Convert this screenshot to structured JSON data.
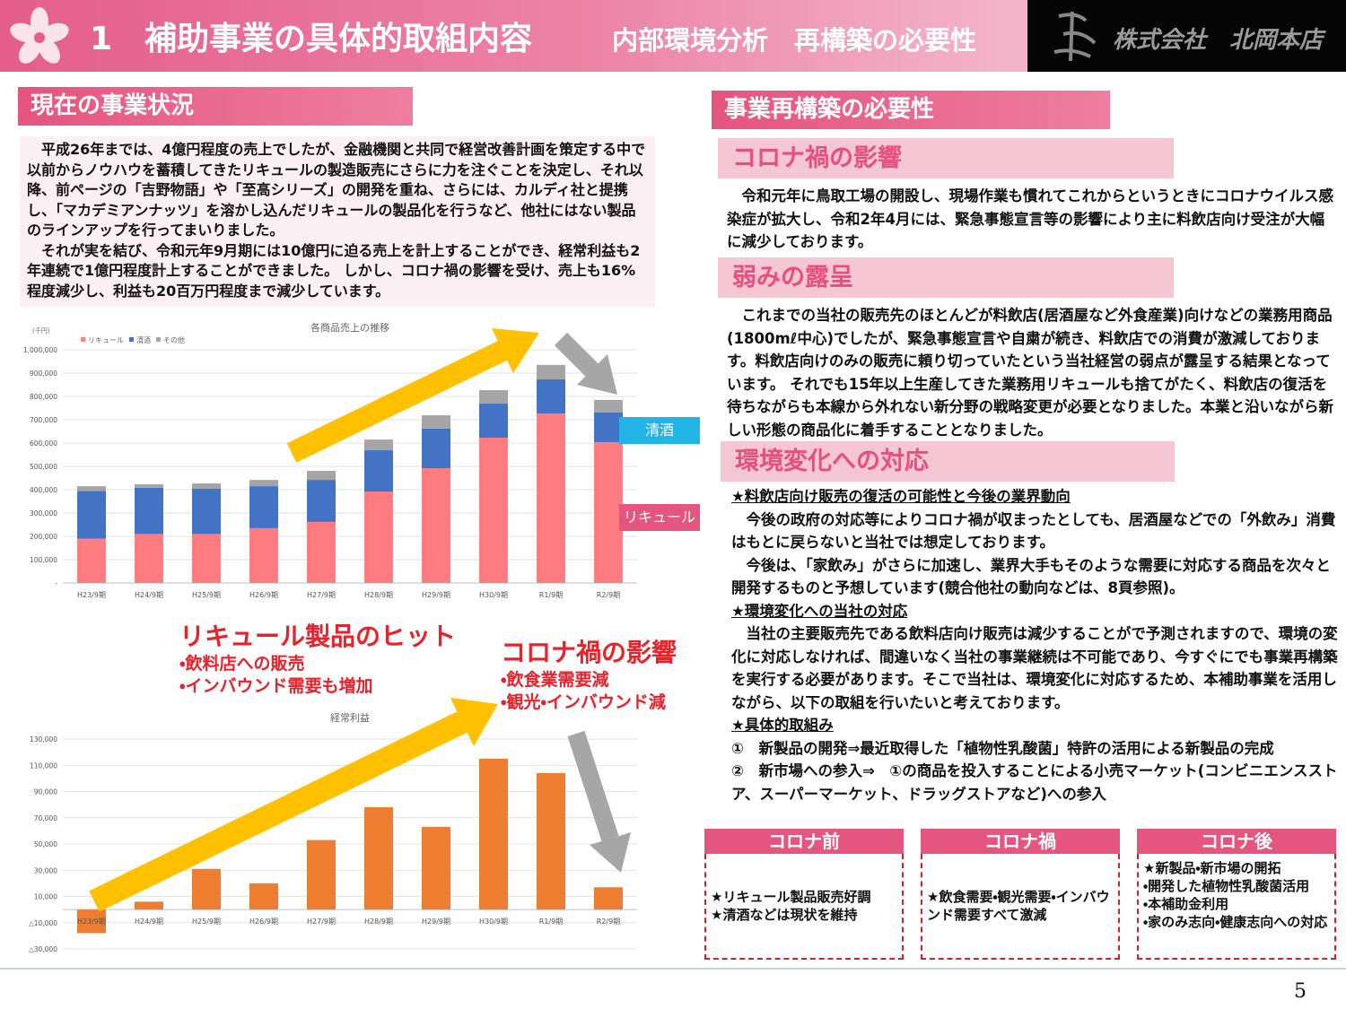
{
  "header": {
    "title": "1　補助事業の具体的取組内容",
    "subtitle": "内部環境分析　再構築の必要性",
    "company": "株式会社　北岡本店"
  },
  "current": {
    "heading": "現在の事業状況",
    "paragraphs": [
      "平成26年までは、4億円程度の売上でしたが、金融機関と共同で経営改善計画を策定する中で以前からノウハウを蓄積してきたリキュールの製造販売にさらに力を注ぐことを決定し、それ以降、前ページの「吉野物語」や「至高シリーズ」の開発を重ね、さらには、カルディ社と提携し、「マカデミアンナッツ」を溶かし込んだリキュールの製品化を行うなど、他社にはない製品のラインアップを行ってまいりました。",
      "それが実を結び、令和元年9月期には10億円に迫る売上を計上することができ、経常利益も2年連続で1億円程度計上することができました。 しかし、コロナ禍の影響を受け、売上も16%程度減少し、利益も20百万円程度まで減少しています。"
    ]
  },
  "chart_data": [
    {
      "type": "bar",
      "stacked": true,
      "title": "各商品売上の推移",
      "y_label": "(千円)",
      "legend": "top-left",
      "grid": true,
      "categories": [
        "H23/9期",
        "H24/9期",
        "H25/9期",
        "H26/9期",
        "H27/9期",
        "H28/9期",
        "H29/9期",
        "H30/9期",
        "R1/9期",
        "R2/9期"
      ],
      "series": [
        {
          "name": "リキュール",
          "color": "#ff7c80",
          "values": [
            190000,
            210000,
            210000,
            235000,
            262000,
            392000,
            492000,
            623000,
            727000,
            604000
          ]
        },
        {
          "name": "清酒",
          "color": "#4472c4",
          "values": [
            205000,
            198000,
            195000,
            180000,
            180000,
            177000,
            170000,
            146000,
            146000,
            127000
          ]
        },
        {
          "name": "その他",
          "color": "#a5a5a5",
          "values": [
            20000,
            15000,
            22000,
            27000,
            39000,
            46000,
            57000,
            58000,
            62000,
            54000
          ]
        }
      ],
      "ylim": [
        0,
        1000000
      ],
      "yticks": [
        {
          "value": 0,
          "label": "-"
        },
        {
          "value": 100000,
          "label": "100,000"
        },
        {
          "value": 200000,
          "label": "200,000"
        },
        {
          "value": 300000,
          "label": "300,000"
        },
        {
          "value": 400000,
          "label": "400,000"
        },
        {
          "value": 500000,
          "label": "500,000"
        },
        {
          "value": 600000,
          "label": "600,000"
        },
        {
          "value": 700000,
          "label": "700,000"
        },
        {
          "value": 800000,
          "label": "800,000"
        },
        {
          "value": 900000,
          "label": "900,000"
        },
        {
          "value": 1000000,
          "label": "1,000,000"
        }
      ]
    },
    {
      "type": "bar",
      "title": "経常利益",
      "grid": true,
      "color": "#ed7d31",
      "categories": [
        "H23/9期",
        "H24/9期",
        "H25/9期",
        "H26/9期",
        "H27/9期",
        "H28/9期",
        "H29/9期",
        "H30/9期",
        "R1/9期",
        "R2/9期"
      ],
      "values": [
        -18000,
        6000,
        31000,
        20000,
        53000,
        78000,
        63000,
        115000,
        104000,
        17000
      ],
      "ylim": [
        -30000,
        130000
      ],
      "yticks": [
        {
          "value": -30000,
          "label": "△30,000"
        },
        {
          "value": -10000,
          "label": "△10,000"
        },
        {
          "value": 10000,
          "label": "10,000"
        },
        {
          "value": 30000,
          "label": "30,000"
        },
        {
          "value": 50000,
          "label": "50,000"
        },
        {
          "value": 70000,
          "label": "70,000"
        },
        {
          "value": 90000,
          "label": "90,000"
        },
        {
          "value": 110000,
          "label": "110,000"
        },
        {
          "value": 130000,
          "label": "130,000"
        }
      ]
    }
  ],
  "callouts": [
    {
      "title": "リキュール製品のヒット",
      "items": [
        "・飲料店への販売",
        "・インバウンド需要も増加"
      ]
    },
    {
      "title": "コロナ禍の影響",
      "items": [
        "・飲食業需要減",
        "・観光・インバウンド減"
      ]
    }
  ],
  "necessity": {
    "heading": "事業再構築の必要性",
    "sections": [
      {
        "heading": "コロナ禍の影響",
        "text": "令和元年に鳥取工場の開設し、現場作業も慣れてこれからというときにコロナウイルス感染症が拡大し、令和2年4月には、緊急事態宣言等の影響により主に料飲店向け受注が大幅に減少しております。"
      },
      {
        "heading": "弱みの露呈",
        "text": "これまでの当社の販売先のほとんどが料飲店(居酒屋など外食産業)向けなどの業務用商品(1800mℓ中心)でしたが、緊急事態宣言や自粛が続き、料飲店での消費が激減しております。料飲店向けのみの販売に頼り切っていたという当社経営の弱点が露呈する結果となっています。 それでも15年以上生産してきた業務用リキュールも捨てがたく、料飲店の復活を待ちながらも本線から外れない新分野の戦略変更が必要となりました。本業と沿いながら新しい形態の商品化に着手することとなりました。"
      },
      {
        "heading": "環境変化への対応",
        "blocks": [
          {
            "title": "★料飲店向け販売の復活の可能性と今後の業界動向",
            "paragraphs": [
              "今後の政府の対応等によりコロナ禍が収まったとしても、居酒屋などでの「外飲み」消費はもとに戻らないと当社では想定しております。",
              "今後は、「家飲み」がさらに加速し、業界大手もそのような需要に対応する商品を次々と開発するものと予想しています(競合他社の動向などは、8頁参照)。"
            ]
          },
          {
            "title": "★環境変化への当社の対応",
            "paragraphs": [
              "当社の主要販売先である飲料店向け販売は減少することがで予測されますので、環境の変化に対応しなければ、間違いなく当社の事業継続は不可能であり、今すぐにでも事業再構築を実行する必要があります。そこで当社は、環境変化に対応するため、本補助事業を活用しながら、以下の取組を行いたいと考えております。"
            ]
          },
          {
            "title": "★具体的取組み",
            "items": [
              "①　新製品の開発⇒最近取得した「植物性乳酸菌」特許の活用による新製品の完成",
              "②　新市場への参入⇒　①の商品を投入することによる小売マーケット(コンビニエンスストア、スーパーマーケット、ドラッグストアなど)への参入"
            ]
          }
        ]
      }
    ]
  },
  "phases": [
    {
      "title": "コロナ前",
      "items": [
        "★リキュール製品販売好調",
        "★清酒などは現状を維持"
      ]
    },
    {
      "title": "コロナ禍",
      "items": [
        "★飲食需要・観光需要・インバウンド需要すべて激減"
      ]
    },
    {
      "title": "コロナ後",
      "items": [
        "★新製品・新市場の開拓",
        "・開発した植物性乳酸菌活用",
        "・本補助金利用",
        "・家のみ志向・健康志向への対応"
      ]
    }
  ],
  "page_number": "5"
}
